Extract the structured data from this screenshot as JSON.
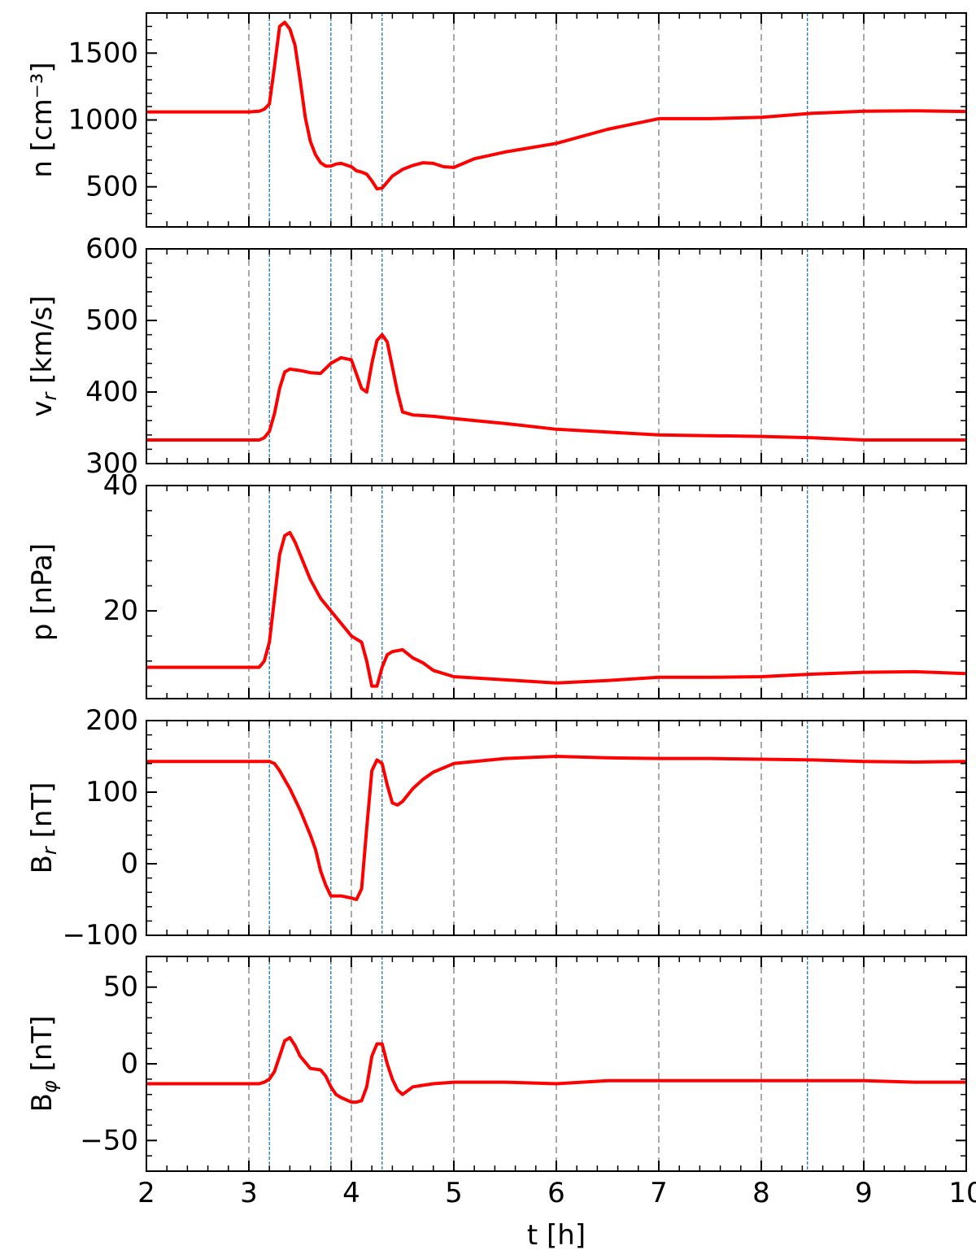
{
  "chart_data": {
    "type": "line",
    "xlabel": "t [h]",
    "xlim": [
      2,
      10
    ],
    "x_ticks": [
      "2",
      "3",
      "4",
      "5",
      "6",
      "7",
      "8",
      "9",
      "10"
    ],
    "grid": "off",
    "colors": {
      "series": "#ff0000",
      "gray_lines": "#aaaaaa",
      "blue_lines": "#1f77b4"
    },
    "gray_dashed_vlines": [
      3,
      4,
      5,
      6,
      7,
      8,
      9
    ],
    "blue_dashed_vlines": [
      3.2,
      3.8,
      4.3,
      8.45
    ],
    "panels": [
      {
        "ylabel": "n [cm⁻³]",
        "ylim": [
          200,
          1800
        ],
        "y_ticks": [
          500,
          1000,
          1500
        ],
        "y_tick_labels": [
          "500",
          "1000",
          "1500"
        ],
        "series": [
          {
            "x": [
              2.0,
              2.5,
              3.0,
              3.1,
              3.15,
              3.2,
              3.25,
              3.3,
              3.35,
              3.4,
              3.45,
              3.5,
              3.55,
              3.6,
              3.65,
              3.7,
              3.75,
              3.8,
              3.85,
              3.9,
              4.0,
              4.05,
              4.1,
              4.15,
              4.2,
              4.25,
              4.3,
              4.4,
              4.5,
              4.6,
              4.7,
              4.8,
              4.9,
              5.0,
              5.2,
              5.5,
              6.0,
              6.5,
              7.0,
              7.5,
              8.0,
              8.5,
              9.0,
              9.5,
              10.0
            ],
            "y": [
              1060,
              1060,
              1060,
              1065,
              1080,
              1120,
              1400,
              1700,
              1730,
              1680,
              1560,
              1300,
              1020,
              840,
              740,
              680,
              655,
              655,
              670,
              675,
              650,
              620,
              610,
              595,
              545,
              485,
              490,
              580,
              630,
              660,
              680,
              675,
              650,
              645,
              710,
              760,
              825,
              930,
              1010,
              1010,
              1020,
              1050,
              1065,
              1068,
              1063
            ]
          }
        ]
      },
      {
        "ylabel": "v_r [km/s]",
        "ylim": [
          300,
          600
        ],
        "y_ticks": [
          300,
          400,
          500,
          600
        ],
        "y_tick_labels": [
          "300",
          "400",
          "500",
          "600"
        ],
        "series": [
          {
            "x": [
              2.0,
              2.5,
              3.0,
              3.1,
              3.15,
              3.2,
              3.25,
              3.3,
              3.35,
              3.4,
              3.5,
              3.6,
              3.7,
              3.8,
              3.9,
              4.0,
              4.05,
              4.1,
              4.15,
              4.2,
              4.25,
              4.3,
              4.35,
              4.4,
              4.45,
              4.5,
              4.6,
              4.7,
              4.8,
              5.0,
              5.5,
              6.0,
              6.5,
              7.0,
              7.5,
              8.0,
              8.5,
              9.0,
              9.5,
              10.0
            ],
            "y": [
              333,
              333,
              333,
              333,
              336,
              345,
              370,
              405,
              428,
              432,
              430,
              427,
              426,
              440,
              448,
              445,
              425,
              405,
              400,
              440,
              472,
              480,
              470,
              435,
              400,
              372,
              368,
              367,
              366,
              363,
              356,
              348,
              344,
              340,
              339,
              338,
              336,
              333,
              333,
              333
            ]
          }
        ]
      },
      {
        "ylabel": "p [nPa]",
        "ylim": [
          6,
          40
        ],
        "y_ticks": [
          20,
          40
        ],
        "y_tick_labels": [
          "20",
          "40"
        ],
        "series": [
          {
            "x": [
              2.0,
              2.5,
              3.0,
              3.1,
              3.15,
              3.2,
              3.25,
              3.3,
              3.35,
              3.4,
              3.45,
              3.5,
              3.6,
              3.7,
              3.8,
              3.9,
              4.0,
              4.05,
              4.1,
              4.15,
              4.2,
              4.25,
              4.3,
              4.35,
              4.4,
              4.5,
              4.6,
              4.7,
              4.8,
              5.0,
              5.5,
              6.0,
              6.5,
              7.0,
              7.5,
              8.0,
              8.5,
              9.0,
              9.5,
              10.0
            ],
            "y": [
              11,
              11,
              11,
              11,
              12,
              15,
              22,
              29,
              32,
              32.5,
              31,
              29,
              25,
              22,
              20,
              18,
              16,
              15.5,
              15,
              12,
              8,
              8,
              11,
              13,
              13.5,
              13.8,
              12.5,
              11.7,
              10.5,
              9.5,
              9,
              8.5,
              8.9,
              9.4,
              9.4,
              9.5,
              9.9,
              10.2,
              10.3,
              10
            ]
          }
        ]
      },
      {
        "ylabel": "B_r [nT]",
        "ylim": [
          -100,
          200
        ],
        "y_ticks": [
          -100,
          0,
          100,
          200
        ],
        "y_tick_labels": [
          "−100",
          "0",
          "100",
          "200"
        ],
        "series": [
          {
            "x": [
              2.0,
              2.5,
              3.0,
              3.1,
              3.2,
              3.25,
              3.3,
              3.4,
              3.5,
              3.6,
              3.65,
              3.7,
              3.75,
              3.8,
              3.9,
              4.0,
              4.05,
              4.1,
              4.15,
              4.2,
              4.25,
              4.3,
              4.35,
              4.4,
              4.45,
              4.5,
              4.6,
              4.7,
              4.8,
              5.0,
              5.5,
              6.0,
              6.5,
              7.0,
              7.5,
              8.0,
              8.5,
              9.0,
              9.5,
              10.0
            ],
            "y": [
              143,
              143,
              143,
              143,
              143,
              140,
              130,
              105,
              75,
              40,
              20,
              -10,
              -30,
              -45,
              -45,
              -48,
              -50,
              -35,
              50,
              130,
              145,
              140,
              110,
              85,
              82,
              87,
              105,
              118,
              128,
              140,
              147,
              150,
              148,
              147,
              147,
              146,
              145,
              143,
              142,
              143
            ]
          }
        ]
      },
      {
        "ylabel": "B_φ [nT]",
        "ylim": [
          -70,
          70
        ],
        "y_ticks": [
          -50,
          0,
          50
        ],
        "y_tick_labels": [
          "−50",
          "0",
          "50"
        ],
        "series": [
          {
            "x": [
              2.0,
              2.5,
              3.0,
              3.1,
              3.15,
              3.2,
              3.25,
              3.3,
              3.35,
              3.4,
              3.45,
              3.5,
              3.6,
              3.7,
              3.75,
              3.8,
              3.85,
              3.9,
              4.0,
              4.05,
              4.1,
              4.15,
              4.2,
              4.25,
              4.3,
              4.35,
              4.4,
              4.45,
              4.5,
              4.6,
              4.8,
              5.0,
              5.5,
              6.0,
              6.5,
              7.0,
              7.5,
              8.0,
              8.5,
              9.0,
              9.5,
              10.0
            ],
            "y": [
              -13,
              -13,
              -13,
              -13,
              -12,
              -10,
              -5,
              5,
              15,
              17,
              12,
              5,
              -3,
              -4,
              -8,
              -15,
              -20,
              -22,
              -25,
              -25,
              -24,
              -15,
              5,
              13,
              13,
              0,
              -10,
              -17,
              -20,
              -15,
              -13,
              -12,
              -12,
              -13,
              -11,
              -11,
              -11,
              -11,
              -11,
              -11,
              -12,
              -12
            ]
          }
        ]
      }
    ]
  }
}
